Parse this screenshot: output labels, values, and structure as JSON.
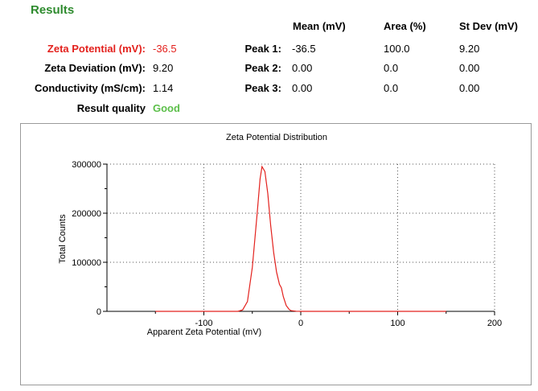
{
  "results_title": "Results",
  "summary": {
    "zeta_potential": {
      "label": "Zeta Potential (mV):",
      "value": "-36.5"
    },
    "zeta_deviation": {
      "label": "Zeta Deviation (mV):",
      "value": "9.20"
    },
    "conductivity": {
      "label": "Conductivity (mS/cm):",
      "value": "1.14"
    },
    "result_quality": {
      "label": "Result quality",
      "value": "Good"
    }
  },
  "peaks_table": {
    "headers": [
      "Mean (mV)",
      "Area (%)",
      "St Dev (mV)"
    ],
    "rows": [
      {
        "label": "Peak 1:",
        "mean": "-36.5",
        "area": "100.0",
        "stdev": "9.20"
      },
      {
        "label": "Peak 2:",
        "mean": "0.00",
        "area": "0.0",
        "stdev": "0.00"
      },
      {
        "label": "Peak 3:",
        "mean": "0.00",
        "area": "0.0",
        "stdev": "0.00"
      }
    ]
  },
  "colors": {
    "title_green": "#2e8b2e",
    "highlight_red": "#e3211d",
    "quality_green": "#5cbf4a",
    "curve": "#e3211d"
  },
  "chart_data": {
    "type": "line",
    "title": "Zeta Potential Distribution",
    "xlabel": "Apparent Zeta Potential (mV)",
    "ylabel": "Total Counts",
    "xlim": [
      -200,
      200
    ],
    "ylim": [
      0,
      300000
    ],
    "xticks": [
      -100,
      0,
      100,
      200
    ],
    "yticks": [
      0,
      100000,
      200000,
      300000
    ],
    "grid": true,
    "series": [
      {
        "x": [
          -150,
          -70,
          -65,
          -60,
          -55,
          -50,
          -45,
          -42,
          -40,
          -37,
          -34,
          -31,
          -28,
          -25,
          -22,
          -20,
          -18,
          -15,
          -12,
          -10,
          -5,
          0,
          50,
          100,
          150
        ],
        "y": [
          0,
          0,
          0,
          3000,
          20000,
          90000,
          200000,
          270000,
          295000,
          285000,
          240000,
          175000,
          120000,
          80000,
          55000,
          48000,
          30000,
          12000,
          4000,
          1500,
          300,
          0,
          0,
          0,
          0
        ]
      }
    ]
  }
}
